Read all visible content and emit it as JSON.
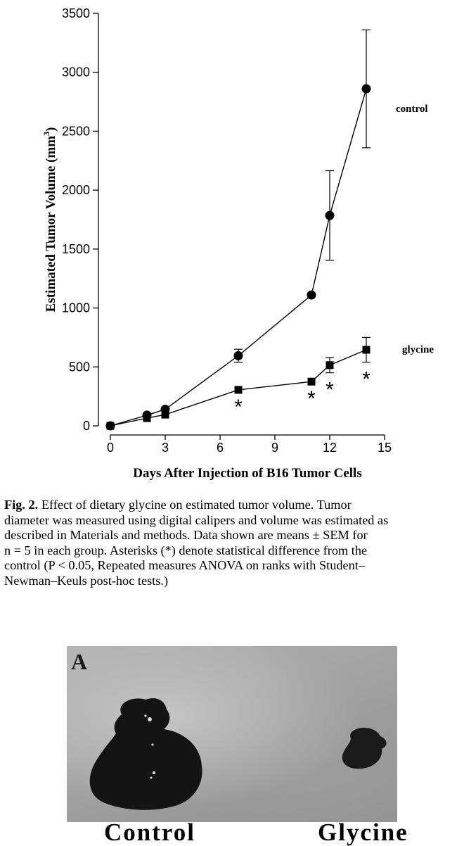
{
  "chart_data": {
    "type": "line",
    "title": "",
    "xlabel": "Days After Injection of B16 Tumor Cells",
    "ylabel": "Estimated Tumor Volume (mm",
    "ylabel_superscript": "3",
    "ylabel_close": ")",
    "xlim": [
      0,
      15
    ],
    "ylim": [
      0,
      3500
    ],
    "xticks": [
      0,
      3,
      6,
      9,
      12,
      15
    ],
    "yticks": [
      0,
      500,
      1000,
      1500,
      2000,
      2500,
      3000,
      3500
    ],
    "grid": false,
    "series": [
      {
        "name": "control",
        "marker": "circle",
        "x": [
          0,
          2,
          3,
          7,
          11,
          12,
          14
        ],
        "y": [
          0,
          90,
          140,
          595,
          1110,
          1785,
          2860
        ],
        "err": [
          0,
          0,
          0,
          55,
          0,
          380,
          500
        ]
      },
      {
        "name": "glycine",
        "marker": "square",
        "x": [
          0,
          2,
          3,
          7,
          11,
          12,
          14
        ],
        "y": [
          0,
          65,
          95,
          305,
          375,
          515,
          645
        ],
        "err": [
          0,
          0,
          0,
          0,
          0,
          65,
          105
        ]
      }
    ],
    "annotations": [
      {
        "text": "*",
        "x": 7
      },
      {
        "text": "*",
        "x": 11
      },
      {
        "text": "*",
        "x": 12
      },
      {
        "text": "*",
        "x": 14
      }
    ]
  },
  "caption": {
    "label": "Fig. 2.",
    "lines": [
      " Effect of dietary glycine on estimated tumor volume. Tumor",
      "diameter was measured using digital calipers and volume was estimated as",
      "described in Materials and methods. Data shown are means ± SEM for",
      "n = 5 in each group. Asterisks (*) denote statistical difference from the",
      "control (P < 0.05, Repeated measures ANOVA on ranks with Student–",
      "Newman–Keuls post-hoc tests.)"
    ]
  },
  "photo": {
    "panel_letter": "A",
    "left_label": "Control",
    "right_label": "Glycine"
  }
}
